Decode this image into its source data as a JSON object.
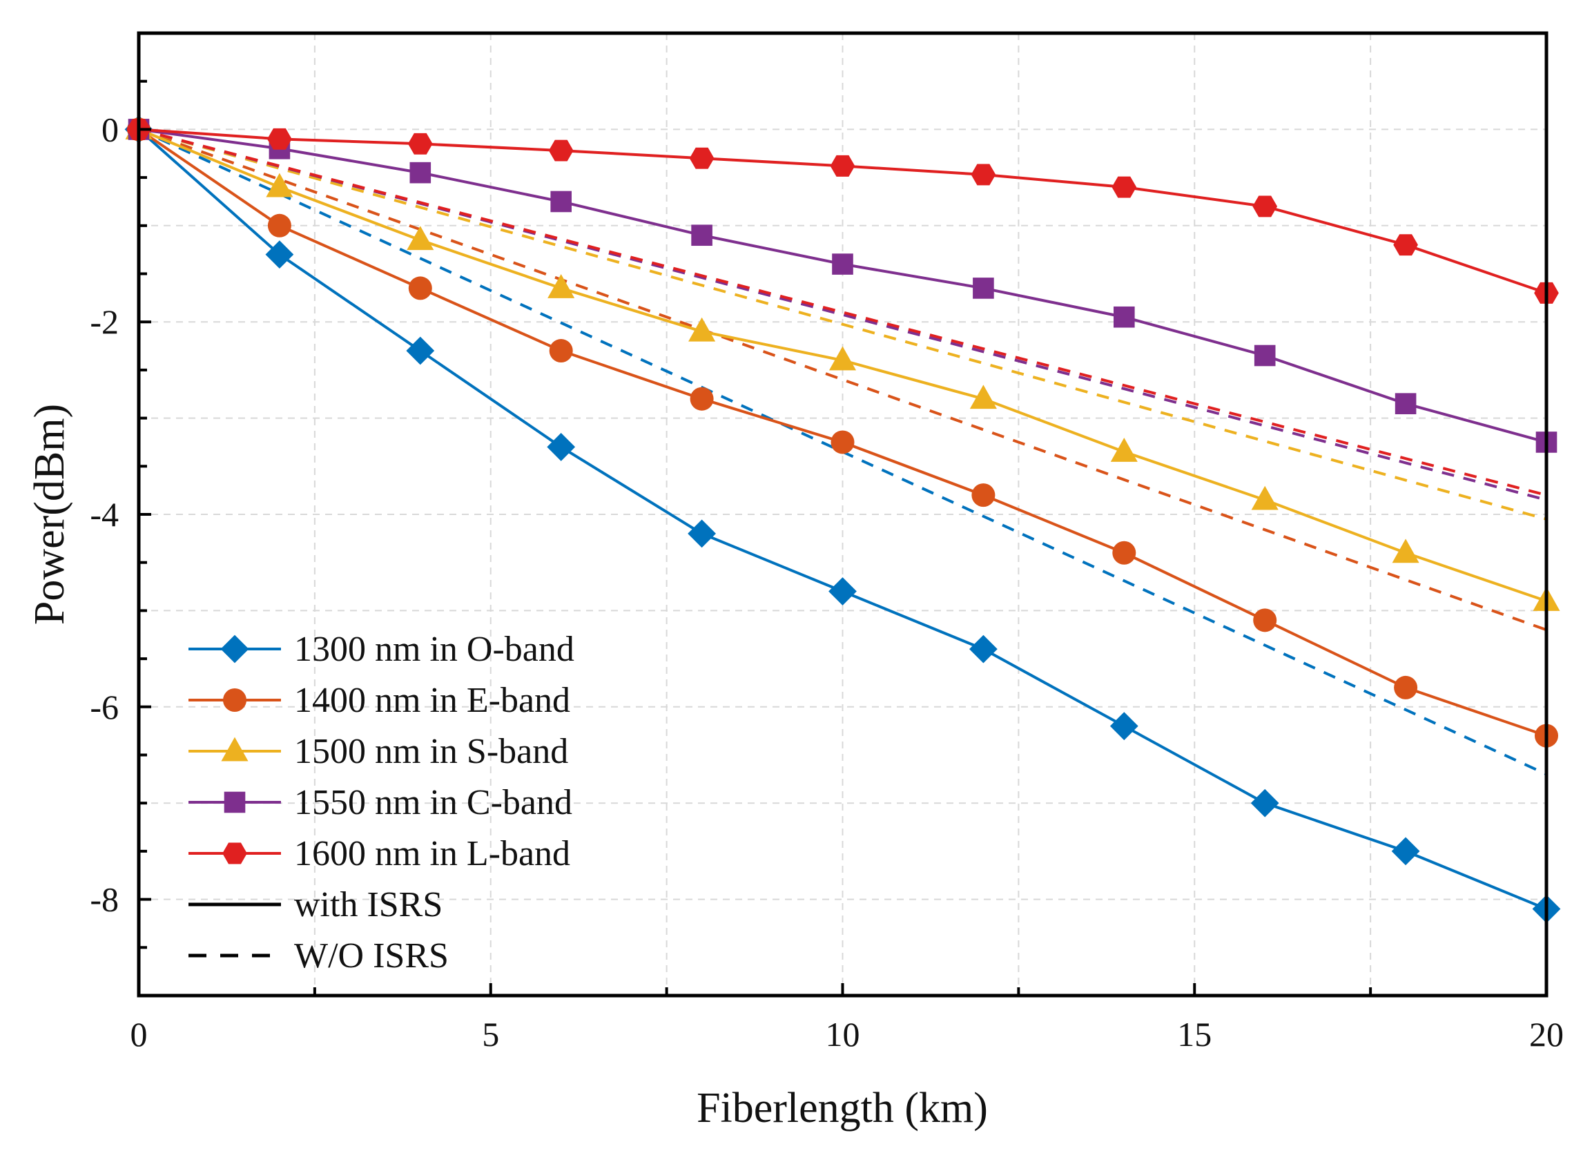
{
  "chart_data": {
    "type": "line",
    "title": "",
    "xlabel": "Fiberlength (km)",
    "ylabel": "Power(dBm)",
    "xlim": [
      0,
      20
    ],
    "ylim": [
      -9,
      1
    ],
    "xticks": [
      0,
      5,
      10,
      15,
      20
    ],
    "xtick_labels": [
      "0",
      "5",
      "10",
      "15",
      "20"
    ],
    "yticks": [
      0,
      -2,
      -4,
      -6,
      -8
    ],
    "ytick_labels": [
      "0",
      "-2",
      "-4",
      "-6",
      "-8"
    ],
    "grid": true,
    "legend_position": "bottom-left",
    "x": [
      0,
      2,
      4,
      6,
      8,
      10,
      12,
      14,
      16,
      18,
      20
    ],
    "series": [
      {
        "name": "1300 nm in O-band",
        "color": "#0072BD",
        "marker": "diamond",
        "with_isrs": [
          0,
          -1.3,
          -2.3,
          -3.3,
          -4.2,
          -4.8,
          -5.4,
          -6.2,
          -7.0,
          -7.5,
          -8.1
        ],
        "without_isrs": [
          0,
          -0.67,
          -1.34,
          -2.01,
          -2.68,
          -3.35,
          -4.02,
          -4.69,
          -5.36,
          -6.03,
          -6.7
        ]
      },
      {
        "name": "1400 nm in E-band",
        "color": "#D95319",
        "marker": "circle",
        "with_isrs": [
          0,
          -1.0,
          -1.65,
          -2.3,
          -2.8,
          -3.25,
          -3.8,
          -4.4,
          -5.1,
          -5.8,
          -6.3
        ],
        "without_isrs": [
          0,
          -0.52,
          -1.04,
          -1.56,
          -2.08,
          -2.6,
          -3.12,
          -3.64,
          -4.16,
          -4.68,
          -5.2
        ]
      },
      {
        "name": "1500 nm in S-band",
        "color": "#EDB120",
        "marker": "triangle",
        "with_isrs": [
          0,
          -0.6,
          -1.15,
          -1.65,
          -2.1,
          -2.4,
          -2.8,
          -3.35,
          -3.85,
          -4.4,
          -4.9
        ],
        "without_isrs": [
          0,
          -0.405,
          -0.81,
          -1.215,
          -1.62,
          -2.025,
          -2.43,
          -2.835,
          -3.24,
          -3.645,
          -4.05
        ]
      },
      {
        "name": "1550 nm in C-band",
        "color": "#7E2F8E",
        "marker": "square",
        "with_isrs": [
          0,
          -0.2,
          -0.45,
          -0.75,
          -1.1,
          -1.4,
          -1.65,
          -1.95,
          -2.35,
          -2.85,
          -3.25
        ],
        "without_isrs": [
          0,
          -0.385,
          -0.77,
          -1.155,
          -1.54,
          -1.925,
          -2.31,
          -2.695,
          -3.08,
          -3.465,
          -3.85
        ]
      },
      {
        "name": "1600 nm in L-band",
        "color": "#E02020",
        "marker": "hexagon",
        "with_isrs": [
          0,
          -0.1,
          -0.15,
          -0.22,
          -0.3,
          -0.38,
          -0.47,
          -0.6,
          -0.8,
          -1.2,
          -1.7
        ],
        "without_isrs": [
          0,
          -0.38,
          -0.76,
          -1.14,
          -1.52,
          -1.9,
          -2.28,
          -2.66,
          -3.04,
          -3.42,
          -3.8
        ]
      }
    ],
    "line_styles": [
      {
        "name": "with ISRS",
        "dash": "solid"
      },
      {
        "name": "W/O ISRS",
        "dash": "dashed"
      }
    ]
  }
}
